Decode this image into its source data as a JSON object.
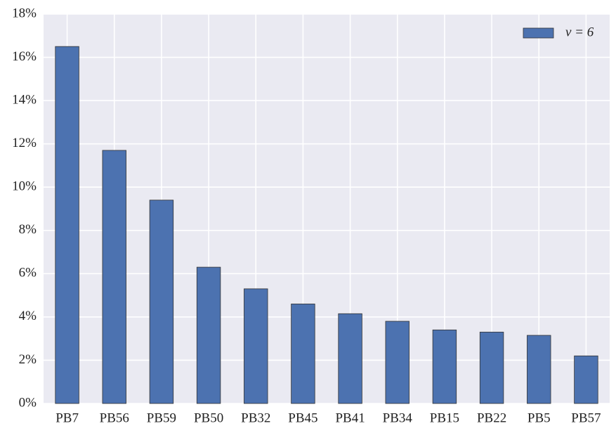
{
  "chart_data": {
    "type": "bar",
    "categories": [
      "PB7",
      "PB56",
      "PB59",
      "PB50",
      "PB32",
      "PB45",
      "PB41",
      "PB34",
      "PB15",
      "PB22",
      "PB5",
      "PB57"
    ],
    "series": [
      {
        "name": "ν = 6",
        "color": "#4c72b0",
        "values": [
          16.5,
          11.7,
          9.4,
          6.3,
          5.3,
          4.6,
          4.15,
          3.8,
          3.4,
          3.3,
          3.15,
          2.2
        ]
      }
    ],
    "ylim": [
      0,
      18
    ],
    "yticks": [
      {
        "value": 0,
        "label": "0%"
      },
      {
        "value": 2,
        "label": "2%"
      },
      {
        "value": 4,
        "label": "4%"
      },
      {
        "value": 6,
        "label": "6%"
      },
      {
        "value": 8,
        "label": "8%"
      },
      {
        "value": 10,
        "label": "10%"
      },
      {
        "value": 12,
        "label": "12%"
      },
      {
        "value": 14,
        "label": "14%"
      },
      {
        "value": 16,
        "label": "16%"
      },
      {
        "value": 18,
        "label": "18%"
      }
    ],
    "grid": true,
    "legend": "upper right"
  }
}
